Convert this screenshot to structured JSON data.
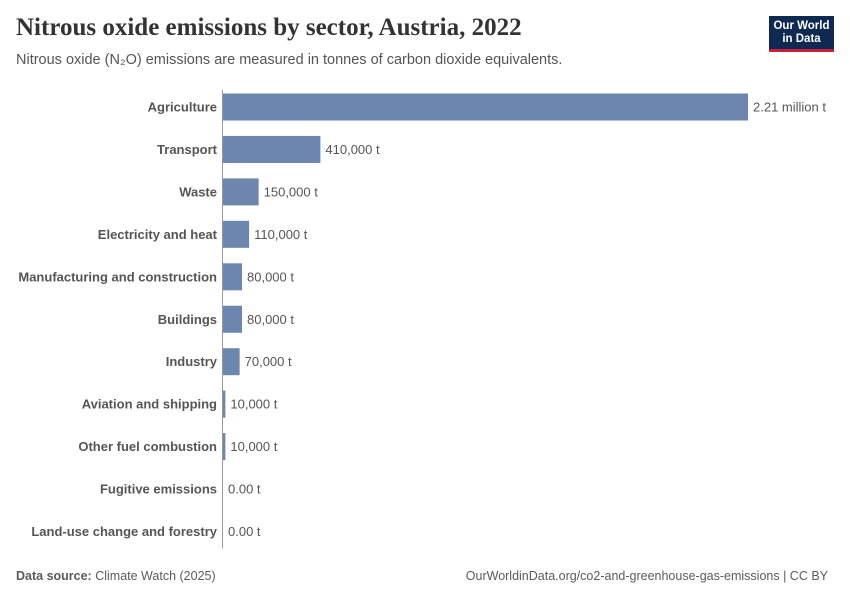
{
  "header": {
    "title": "Nitrous oxide emissions by sector, Austria, 2022",
    "subtitle": "Nitrous oxide (N₂O) emissions are measured in tonnes of carbon dioxide equivalents."
  },
  "logo": {
    "line1": "Our World",
    "line2": "in Data"
  },
  "footer": {
    "source_label": "Data source:",
    "source_value": "Climate Watch (2025)",
    "link": "OurWorldinData.org/co2-and-greenhouse-gas-emissions | CC BY"
  },
  "colors": {
    "bar": "#6d86b0",
    "logo_bg": "#0f2a52",
    "logo_accent": "#c8203c",
    "axis": "#9a9a9a"
  },
  "chart_data": {
    "type": "bar",
    "orientation": "horizontal",
    "unit": "t",
    "categories": [
      "Agriculture",
      "Transport",
      "Waste",
      "Electricity and heat",
      "Manufacturing and construction",
      "Buildings",
      "Industry",
      "Aviation and shipping",
      "Other fuel combustion",
      "Fugitive emissions",
      "Land-use change and forestry"
    ],
    "values": [
      2210000,
      410000,
      150000,
      110000,
      80000,
      80000,
      70000,
      10000,
      10000,
      0,
      0
    ],
    "value_labels": [
      "2.21 million t",
      "410,000 t",
      "150,000 t",
      "110,000 t",
      "80,000 t",
      "80,000 t",
      "70,000 t",
      "10,000 t",
      "10,000 t",
      "0.00 t",
      "0.00 t"
    ],
    "xlim": [
      0,
      2210000
    ],
    "grid": false
  }
}
